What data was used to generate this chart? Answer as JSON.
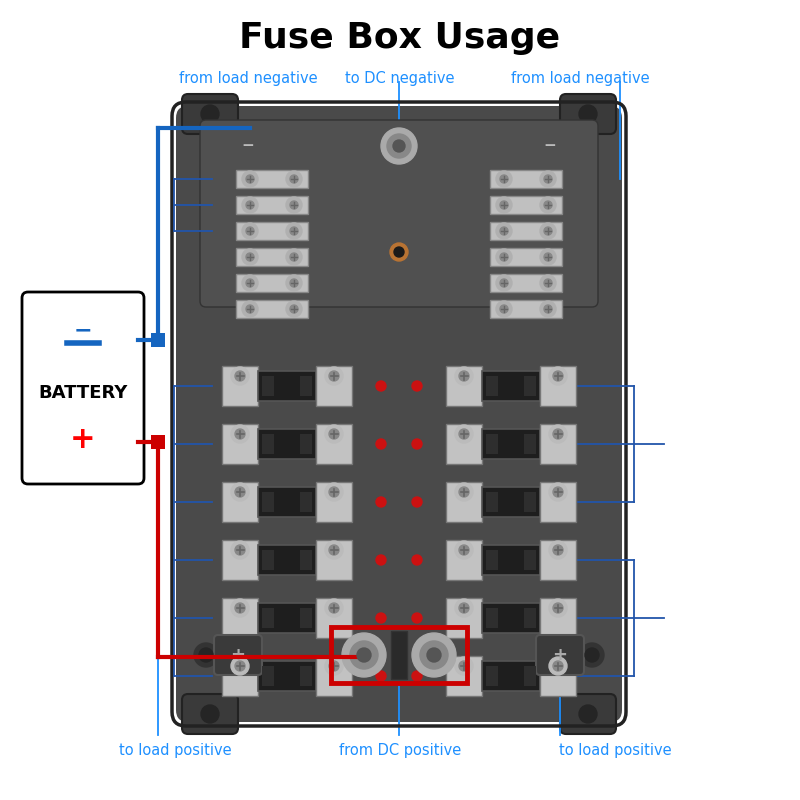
{
  "title": "Fuse Box Usage",
  "title_fontsize": 26,
  "title_fontweight": "bold",
  "bg_color": "#ffffff",
  "label_color": "#1E90FF",
  "label_fontsize": 10.5,
  "box_body_color": "#4a4a4a",
  "box_mid_color": "#555555",
  "box_light_color": "#636363",
  "terminal_silver": "#c8c8c8",
  "terminal_dark": "#888888",
  "screw_color": "#d0d0d0",
  "fuse_body_color": "#2a2a2a",
  "led_color": "#cc1111",
  "red_rect_color": "#cc0000",
  "blue_wire_color": "#1565C0",
  "red_wire_color": "#cc0000",
  "ann_edge_color": "#2255aa",
  "labels": {
    "top_left": "from load negative",
    "top_center": "to DC negative",
    "top_right": "from load negative",
    "bot_left": "to load positive",
    "bot_center": "from DC positive",
    "bot_right": "to load positive"
  }
}
